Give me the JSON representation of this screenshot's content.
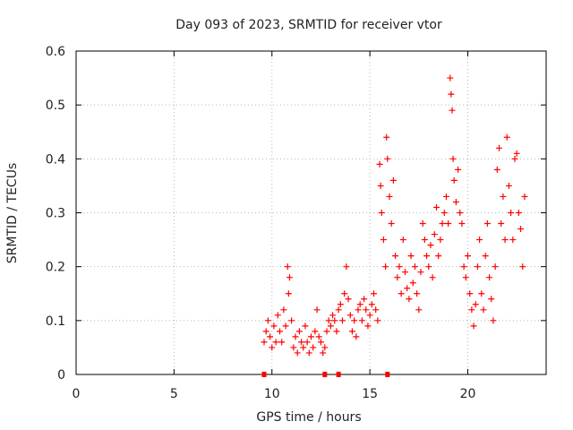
{
  "chart_data": {
    "type": "scatter",
    "title": "Day 093 of 2023, SRMTID for receiver vtor",
    "xlabel": "GPS time / hours",
    "ylabel": "SRMTID / TECUs",
    "xlim": [
      0,
      24
    ],
    "ylim": [
      0,
      0.6
    ],
    "xticks": [
      "0",
      "5",
      "10",
      "15",
      "20"
    ],
    "yticks": [
      "0",
      "0.1",
      "0.2",
      "0.3",
      "0.4",
      "0.5",
      "0.6"
    ],
    "grid": true,
    "marker": "+",
    "series": [
      {
        "name": "SRMTID",
        "color": "#ff0000",
        "points": [
          [
            9.6,
            0.06
          ],
          [
            9.7,
            0.08
          ],
          [
            9.8,
            0.1
          ],
          [
            9.9,
            0.07
          ],
          [
            10.0,
            0.05
          ],
          [
            10.1,
            0.09
          ],
          [
            10.2,
            0.06
          ],
          [
            10.3,
            0.11
          ],
          [
            10.4,
            0.08
          ],
          [
            10.5,
            0.06
          ],
          [
            10.6,
            0.12
          ],
          [
            10.7,
            0.09
          ],
          [
            10.8,
            0.2
          ],
          [
            10.85,
            0.15
          ],
          [
            10.9,
            0.18
          ],
          [
            11.0,
            0.1
          ],
          [
            11.1,
            0.05
          ],
          [
            11.2,
            0.07
          ],
          [
            11.3,
            0.04
          ],
          [
            11.4,
            0.08
          ],
          [
            11.5,
            0.06
          ],
          [
            11.6,
            0.05
          ],
          [
            11.7,
            0.09
          ],
          [
            11.8,
            0.06
          ],
          [
            11.9,
            0.04
          ],
          [
            12.0,
            0.07
          ],
          [
            12.1,
            0.05
          ],
          [
            12.2,
            0.08
          ],
          [
            12.3,
            0.12
          ],
          [
            12.4,
            0.07
          ],
          [
            12.5,
            0.06
          ],
          [
            12.6,
            0.04
          ],
          [
            12.7,
            0.05
          ],
          [
            12.8,
            0.08
          ],
          [
            12.9,
            0.1
          ],
          [
            13.0,
            0.09
          ],
          [
            13.1,
            0.11
          ],
          [
            13.2,
            0.1
          ],
          [
            13.3,
            0.08
          ],
          [
            13.4,
            0.12
          ],
          [
            13.5,
            0.13
          ],
          [
            13.6,
            0.1
          ],
          [
            13.7,
            0.15
          ],
          [
            13.8,
            0.2
          ],
          [
            13.9,
            0.14
          ],
          [
            14.0,
            0.11
          ],
          [
            14.1,
            0.08
          ],
          [
            14.2,
            0.1
          ],
          [
            14.3,
            0.07
          ],
          [
            14.4,
            0.12
          ],
          [
            14.5,
            0.13
          ],
          [
            14.6,
            0.1
          ],
          [
            14.7,
            0.14
          ],
          [
            14.8,
            0.12
          ],
          [
            14.9,
            0.09
          ],
          [
            15.0,
            0.11
          ],
          [
            15.1,
            0.13
          ],
          [
            15.2,
            0.15
          ],
          [
            15.3,
            0.12
          ],
          [
            15.4,
            0.1
          ],
          [
            15.5,
            0.39
          ],
          [
            15.55,
            0.35
          ],
          [
            15.6,
            0.3
          ],
          [
            15.7,
            0.25
          ],
          [
            15.8,
            0.2
          ],
          [
            15.85,
            0.44
          ],
          [
            15.9,
            0.4
          ],
          [
            16.0,
            0.33
          ],
          [
            16.1,
            0.28
          ],
          [
            16.2,
            0.36
          ],
          [
            16.3,
            0.22
          ],
          [
            16.4,
            0.18
          ],
          [
            16.5,
            0.2
          ],
          [
            16.6,
            0.15
          ],
          [
            16.7,
            0.25
          ],
          [
            16.8,
            0.19
          ],
          [
            16.9,
            0.16
          ],
          [
            17.0,
            0.14
          ],
          [
            17.1,
            0.22
          ],
          [
            17.2,
            0.17
          ],
          [
            17.3,
            0.2
          ],
          [
            17.4,
            0.15
          ],
          [
            17.5,
            0.12
          ],
          [
            17.6,
            0.19
          ],
          [
            17.7,
            0.28
          ],
          [
            17.8,
            0.25
          ],
          [
            17.9,
            0.22
          ],
          [
            18.0,
            0.2
          ],
          [
            18.1,
            0.24
          ],
          [
            18.2,
            0.18
          ],
          [
            18.3,
            0.26
          ],
          [
            18.4,
            0.31
          ],
          [
            18.5,
            0.22
          ],
          [
            18.6,
            0.25
          ],
          [
            18.7,
            0.28
          ],
          [
            18.8,
            0.3
          ],
          [
            18.9,
            0.33
          ],
          [
            19.0,
            0.28
          ],
          [
            19.1,
            0.55
          ],
          [
            19.15,
            0.52
          ],
          [
            19.2,
            0.49
          ],
          [
            19.25,
            0.4
          ],
          [
            19.3,
            0.36
          ],
          [
            19.4,
            0.32
          ],
          [
            19.5,
            0.38
          ],
          [
            19.6,
            0.3
          ],
          [
            19.7,
            0.28
          ],
          [
            19.8,
            0.2
          ],
          [
            19.9,
            0.18
          ],
          [
            20.0,
            0.22
          ],
          [
            20.1,
            0.15
          ],
          [
            20.2,
            0.12
          ],
          [
            20.3,
            0.09
          ],
          [
            20.4,
            0.13
          ],
          [
            20.5,
            0.2
          ],
          [
            20.6,
            0.25
          ],
          [
            20.7,
            0.15
          ],
          [
            20.8,
            0.12
          ],
          [
            20.9,
            0.22
          ],
          [
            21.0,
            0.28
          ],
          [
            21.1,
            0.18
          ],
          [
            21.2,
            0.14
          ],
          [
            21.3,
            0.1
          ],
          [
            21.4,
            0.2
          ],
          [
            21.5,
            0.38
          ],
          [
            21.6,
            0.42
          ],
          [
            21.7,
            0.28
          ],
          [
            21.8,
            0.33
          ],
          [
            21.9,
            0.25
          ],
          [
            22.0,
            0.44
          ],
          [
            22.1,
            0.35
          ],
          [
            22.2,
            0.3
          ],
          [
            22.3,
            0.25
          ],
          [
            22.4,
            0.4
          ],
          [
            22.5,
            0.41
          ],
          [
            22.6,
            0.3
          ],
          [
            22.7,
            0.27
          ],
          [
            22.8,
            0.2
          ],
          [
            22.9,
            0.33
          ]
        ]
      }
    ],
    "zero_markers_x": [
      9.6,
      12.7,
      13.4,
      15.9
    ]
  }
}
